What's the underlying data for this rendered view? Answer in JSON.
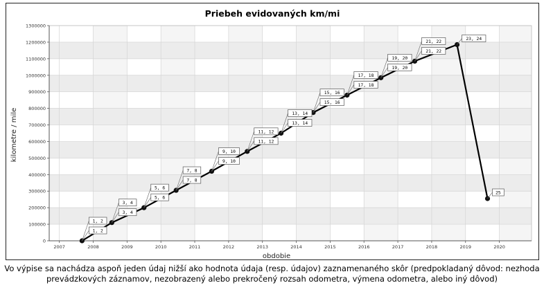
{
  "chart_data": {
    "type": "line",
    "title": "Priebeh evidovaných km/mi",
    "xlabel": "obdobie",
    "ylabel": "kilometre / mile",
    "xlim": [
      2006.7,
      2020.95
    ],
    "ylim": [
      0,
      1300000
    ],
    "y_ticks": [
      0,
      100000,
      200000,
      300000,
      400000,
      500000,
      600000,
      700000,
      800000,
      900000,
      1000000,
      1100000,
      1200000,
      1300000
    ],
    "y_tick_labels": [
      "0",
      "100000",
      "200000",
      "300000",
      "400000",
      "500000",
      "600000",
      "700000",
      "800000",
      "900000",
      "1000000",
      "1100000",
      "1200000",
      "1300000"
    ],
    "x_ticks": [
      2007,
      2008,
      2009,
      2010,
      2011,
      2012,
      2013,
      2014,
      2015,
      2016,
      2017,
      2018,
      2019,
      2020
    ],
    "x_tick_labels": [
      "2007",
      "2008",
      "2009",
      "2010",
      "2011",
      "2012",
      "2013",
      "2014",
      "2015",
      "2016",
      "2017",
      "2018",
      "2019",
      "2020"
    ],
    "grid": true,
    "series": [
      {
        "name": "km/mi",
        "points": [
          {
            "x": 2007.67,
            "y": 0,
            "labels": [
              "1, 2",
              "1, 2"
            ]
          },
          {
            "x": 2008.55,
            "y": 110000,
            "labels": [
              "3, 4",
              "3, 4"
            ]
          },
          {
            "x": 2009.5,
            "y": 200000,
            "labels": [
              "5, 6",
              "5, 6"
            ]
          },
          {
            "x": 2010.45,
            "y": 305000,
            "labels": [
              "7, 8",
              "7, 8"
            ]
          },
          {
            "x": 2011.5,
            "y": 420000,
            "labels": [
              "9, 10",
              "9, 10"
            ]
          },
          {
            "x": 2012.55,
            "y": 540000,
            "labels": [
              "11, 12",
              "11, 12"
            ]
          },
          {
            "x": 2013.55,
            "y": 650000,
            "labels": [
              "13, 14",
              "13, 14"
            ]
          },
          {
            "x": 2014.5,
            "y": 775000,
            "labels": [
              "15, 16",
              "15, 16"
            ]
          },
          {
            "x": 2015.5,
            "y": 880000,
            "labels": [
              "17, 18",
              "17, 18"
            ]
          },
          {
            "x": 2016.5,
            "y": 985000,
            "labels": [
              "19, 20",
              "19, 20"
            ]
          },
          {
            "x": 2017.5,
            "y": 1085000,
            "labels": [
              "21, 22",
              "21, 22"
            ]
          },
          {
            "x": 2018.75,
            "y": 1185000,
            "labels": [
              "23, 24"
            ]
          },
          {
            "x": 2019.65,
            "y": 255000,
            "labels": [
              "25"
            ]
          }
        ]
      }
    ],
    "colors": {
      "line": "#000000",
      "band": "#ececec",
      "grid": "#d4d4d4",
      "axis": "#555555"
    }
  },
  "footer": {
    "line1": "Vo výpise sa nachádza  aspoň jeden údaj nižší ako hodnota údaja (resp. údajov) zaznamenaného skôr (predpokladaný dôvod: nezhoda",
    "line2": "prevádzkových záznamov, nezobrazený alebo prekročený rozsah odometra, výmena odometra, alebo iný dôvod)"
  }
}
